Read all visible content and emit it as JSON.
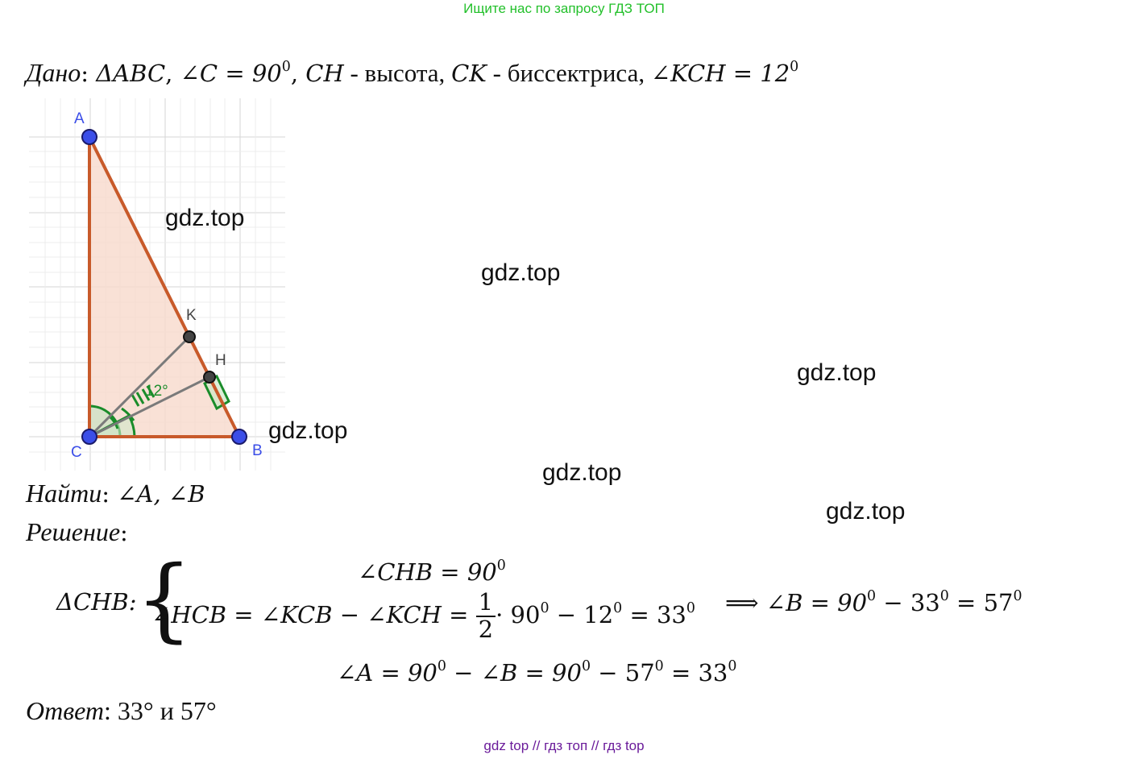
{
  "banner": "Ищите нас по запросу ГДЗ ТОП",
  "given": {
    "label": "Дано",
    "triangle": "ΔABC",
    "angle_c_lhs": "∠C = 90",
    "cond_ch": "CH",
    "vysota": " - высота, ",
    "cond_ck": "CK",
    "bisector": " - биссектриса, ",
    "angle_kch": "∠KCH = 12",
    "deg": "0"
  },
  "figure": {
    "labels": {
      "A": "A",
      "B": "B",
      "C": "C",
      "K": "K",
      "H": "H"
    },
    "angle_label": "12°",
    "colors": {
      "triangle": "#c85a2a",
      "fill": "#f7d9cc",
      "points": "#3b4ee8",
      "angle_marks": "#1a8c2a",
      "grid": "#d0d0d0"
    }
  },
  "watermark": "gdz.top",
  "find": {
    "label": "Найти",
    "value": "∠A, ∠B"
  },
  "solution": {
    "label": "Решение",
    "system_lhs": "ΔCHB:",
    "line1": "∠CHB = 90",
    "line2_a": "∠HCB = ∠KCB − ∠KCH = ",
    "frac_num": "1",
    "frac_den": "2",
    "line2_b": "· 90",
    "line2_c": " − 12",
    "line2_d": " = 33",
    "implies": "⟹ ∠B = 90",
    "implies_b": " − 33",
    "implies_c": " = 57",
    "line3_a": "∠A = 90",
    "line3_b": " − ∠B = 90",
    "line3_c": " − 57",
    "line3_d": " = 33"
  },
  "answer": {
    "label": "Ответ",
    "value": ": 33° и 57°"
  },
  "footer": "gdz top  //  гдз топ  //  гдз top"
}
